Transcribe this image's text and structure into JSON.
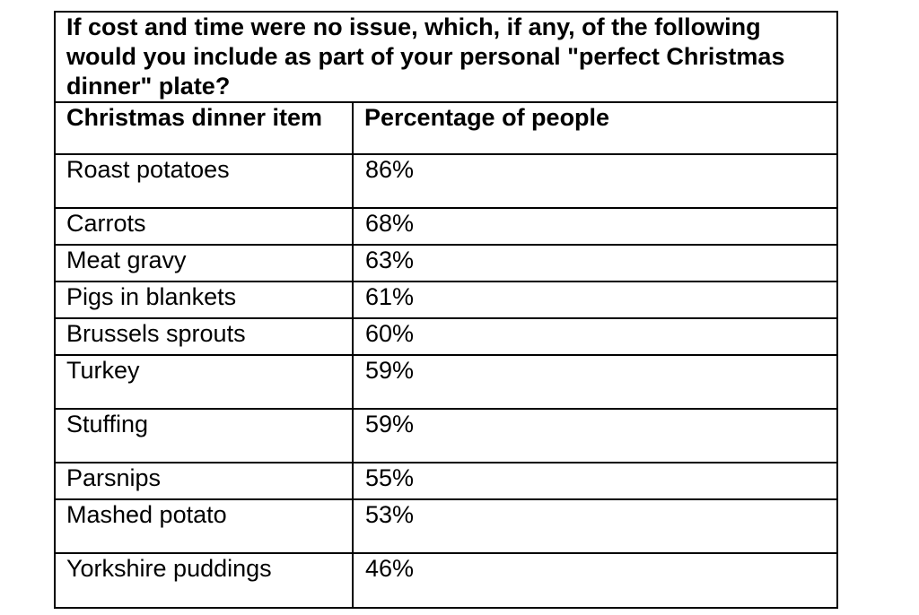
{
  "table": {
    "question": "If cost and time were no issue, which, if any, of the following would you include as part of your personal \"perfect Christmas dinner\" plate?",
    "headers": {
      "item": "Christmas dinner item",
      "percentage": "Percentage of people"
    },
    "rows": [
      {
        "item": "Roast potatoes",
        "pct": "86%"
      },
      {
        "item": "Carrots",
        "pct": "68%"
      },
      {
        "item": "Meat gravy",
        "pct": "63%"
      },
      {
        "item": "Pigs in blankets",
        "pct": "61%"
      },
      {
        "item": "Brussels sprouts",
        "pct": "60%"
      },
      {
        "item": "Turkey",
        "pct": "59%"
      },
      {
        "item": "Stuffing",
        "pct": "59%"
      },
      {
        "item": "Parsnips",
        "pct": "55%"
      },
      {
        "item": "Mashed potato",
        "pct": "53%"
      },
      {
        "item": "Yorkshire puddings",
        "pct": "46%"
      }
    ]
  }
}
